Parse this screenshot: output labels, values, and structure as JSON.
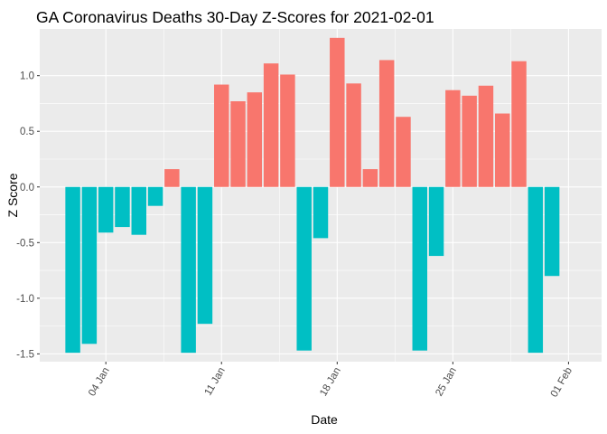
{
  "chart_data": {
    "type": "bar",
    "title": "GA Coronavirus Deaths 30-Day Z-Scores for 2021-02-01",
    "xlabel": "Date",
    "ylabel": "Z Score",
    "x_dates": [
      "2021-01-02",
      "2021-01-03",
      "2021-01-04",
      "2021-01-05",
      "2021-01-06",
      "2021-01-07",
      "2021-01-08",
      "2021-01-09",
      "2021-01-10",
      "2021-01-11",
      "2021-01-12",
      "2021-01-13",
      "2021-01-14",
      "2021-01-15",
      "2021-01-16",
      "2021-01-17",
      "2021-01-18",
      "2021-01-19",
      "2021-01-20",
      "2021-01-21",
      "2021-01-22",
      "2021-01-23",
      "2021-01-24",
      "2021-01-25",
      "2021-01-26",
      "2021-01-27",
      "2021-01-28",
      "2021-01-29",
      "2021-01-30",
      "2021-01-31",
      "2021-02-01"
    ],
    "values": [
      -1.49,
      -1.41,
      -0.41,
      -0.36,
      -0.43,
      -0.17,
      0.16,
      -1.49,
      -1.23,
      0.92,
      0.77,
      0.85,
      1.11,
      1.01,
      -1.47,
      -0.46,
      1.34,
      0.93,
      0.16,
      1.14,
      0.63,
      -1.47,
      -0.62,
      0.87,
      0.82,
      0.91,
      0.66,
      1.13,
      -1.49,
      -0.8,
      null
    ],
    "x_ticks": [
      {
        "date": "2021-01-04",
        "label": "04 Jan"
      },
      {
        "date": "2021-01-11",
        "label": "11 Jan"
      },
      {
        "date": "2021-01-18",
        "label": "18 Jan"
      },
      {
        "date": "2021-01-25",
        "label": "25 Jan"
      },
      {
        "date": "2021-02-01",
        "label": "01 Feb"
      }
    ],
    "y_ticks": [
      {
        "value": -1.5,
        "label": "-1.5"
      },
      {
        "value": -1.0,
        "label": "-1.0"
      },
      {
        "value": -0.5,
        "label": "-0.5"
      },
      {
        "value": 0.0,
        "label": "0.0"
      },
      {
        "value": 0.5,
        "label": "0.5"
      },
      {
        "value": 1.0,
        "label": "1.0"
      }
    ],
    "ylim": [
      -1.57,
      1.42
    ],
    "grid": true,
    "legend": "none",
    "colors": {
      "positive": "#F8766D",
      "negative": "#00BFC4",
      "panel_background": "#EBEBEB",
      "grid_major": "#FFFFFF",
      "tick_text": "#4D4D4D"
    }
  }
}
